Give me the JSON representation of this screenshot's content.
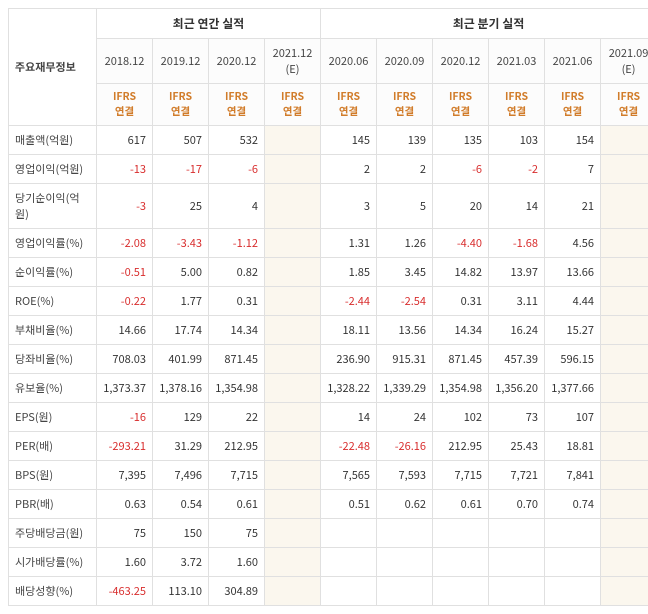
{
  "table": {
    "row_header_label": "주요재무정보",
    "groups": [
      {
        "label": "최근 연간 실적",
        "span": 4
      },
      {
        "label": "최근 분기 실적",
        "span": 6
      }
    ],
    "periods": [
      {
        "date": "2018.12",
        "sub": "IFRS\n연결",
        "est": false
      },
      {
        "date": "2019.12",
        "sub": "IFRS\n연결",
        "est": false
      },
      {
        "date": "2020.12",
        "sub": "IFRS\n연결",
        "est": false
      },
      {
        "date": "2021.12 (E)",
        "sub": "IFRS\n연결",
        "est": true
      },
      {
        "date": "2020.06",
        "sub": "IFRS\n연결",
        "est": false
      },
      {
        "date": "2020.09",
        "sub": "IFRS\n연결",
        "est": false
      },
      {
        "date": "2020.12",
        "sub": "IFRS\n연결",
        "est": false
      },
      {
        "date": "2021.03",
        "sub": "IFRS\n연결",
        "est": false
      },
      {
        "date": "2021.06",
        "sub": "IFRS\n연결",
        "est": false
      },
      {
        "date": "2021.09 (E)",
        "sub": "IFRS\n연결",
        "est": true
      }
    ],
    "rows": [
      {
        "label": "매출액(억원)",
        "values": [
          "617",
          "507",
          "532",
          "",
          "145",
          "139",
          "135",
          "103",
          "154",
          ""
        ]
      },
      {
        "label": "영업이익(억원)",
        "values": [
          "-13",
          "-17",
          "-6",
          "",
          "2",
          "2",
          "-6",
          "-2",
          "7",
          ""
        ]
      },
      {
        "label": "당기순이익(억원)",
        "values": [
          "-3",
          "25",
          "4",
          "",
          "3",
          "5",
          "20",
          "14",
          "21",
          ""
        ]
      },
      {
        "label": "영업이익률(%)",
        "values": [
          "-2.08",
          "-3.43",
          "-1.12",
          "",
          "1.31",
          "1.26",
          "-4.40",
          "-1.68",
          "4.56",
          ""
        ]
      },
      {
        "label": "순이익률(%)",
        "values": [
          "-0.51",
          "5.00",
          "0.82",
          "",
          "1.85",
          "3.45",
          "14.82",
          "13.97",
          "13.66",
          ""
        ]
      },
      {
        "label": "ROE(%)",
        "values": [
          "-0.22",
          "1.77",
          "0.31",
          "",
          "-2.44",
          "-2.54",
          "0.31",
          "3.11",
          "4.44",
          ""
        ]
      },
      {
        "label": "부채비율(%)",
        "values": [
          "14.66",
          "17.74",
          "14.34",
          "",
          "18.11",
          "13.56",
          "14.34",
          "16.24",
          "15.27",
          ""
        ]
      },
      {
        "label": "당좌비율(%)",
        "values": [
          "708.03",
          "401.99",
          "871.45",
          "",
          "236.90",
          "915.31",
          "871.45",
          "457.39",
          "596.15",
          ""
        ]
      },
      {
        "label": "유보율(%)",
        "values": [
          "1,373.37",
          "1,378.16",
          "1,354.98",
          "",
          "1,328.22",
          "1,339.29",
          "1,354.98",
          "1,356.20",
          "1,377.66",
          ""
        ]
      },
      {
        "label": "EPS(원)",
        "values": [
          "-16",
          "129",
          "22",
          "",
          "14",
          "24",
          "102",
          "73",
          "107",
          ""
        ]
      },
      {
        "label": "PER(배)",
        "values": [
          "-293.21",
          "31.29",
          "212.95",
          "",
          "-22.48",
          "-26.16",
          "212.95",
          "25.43",
          "18.81",
          ""
        ]
      },
      {
        "label": "BPS(원)",
        "values": [
          "7,395",
          "7,496",
          "7,715",
          "",
          "7,565",
          "7,593",
          "7,715",
          "7,721",
          "7,841",
          ""
        ]
      },
      {
        "label": "PBR(배)",
        "values": [
          "0.63",
          "0.54",
          "0.61",
          "",
          "0.51",
          "0.62",
          "0.61",
          "0.70",
          "0.74",
          ""
        ]
      },
      {
        "label": "주당배당금(원)",
        "values": [
          "75",
          "150",
          "75",
          "",
          "",
          "",
          "",
          "",
          "",
          ""
        ]
      },
      {
        "label": "시가배당률(%)",
        "values": [
          "1.60",
          "3.72",
          "1.60",
          "",
          "",
          "",
          "",
          "",
          "",
          ""
        ]
      },
      {
        "label": "배당성향(%)",
        "values": [
          "-463.25",
          "113.10",
          "304.89",
          "",
          "",
          "",
          "",
          "",
          "",
          ""
        ]
      }
    ],
    "colors": {
      "negative": "#d82c2c",
      "ifrs_accent": "#d17c2a",
      "est_bg": "#fbf7ee",
      "border": "#e0e0e0",
      "text": "#333333"
    }
  }
}
